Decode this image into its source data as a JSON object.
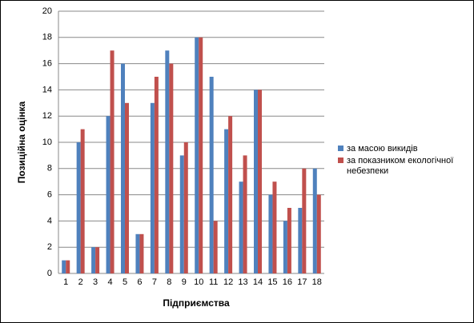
{
  "chart_data": {
    "type": "bar",
    "x_label": "Підприємства",
    "y_label": "Позиційна оцінка",
    "categories": [
      "1",
      "2",
      "3",
      "4",
      "5",
      "6",
      "7",
      "8",
      "9",
      "10",
      "11",
      "12",
      "13",
      "14",
      "15",
      "16",
      "17",
      "18"
    ],
    "series": [
      {
        "name": "за масою викидів",
        "color": "#4f81bd",
        "values": [
          1,
          10,
          2,
          12,
          16,
          3,
          13,
          17,
          9,
          18,
          15,
          11,
          7,
          14,
          6,
          4,
          5,
          8
        ]
      },
      {
        "name": "за показником екологічної небезпеки",
        "color": "#c0504d",
        "values": [
          1,
          11,
          2,
          17,
          13,
          3,
          15,
          16,
          10,
          18,
          4,
          12,
          9,
          14,
          7,
          5,
          8,
          6
        ]
      }
    ],
    "ylim": [
      0,
      20
    ],
    "yticks": [
      0,
      2,
      4,
      6,
      8,
      10,
      12,
      14,
      16,
      18,
      20
    ],
    "grid": true,
    "legend": "right"
  }
}
